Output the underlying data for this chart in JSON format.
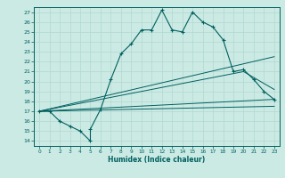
{
  "xlabel": "Humidex (Indice chaleur)",
  "bg_color": "#cceae4",
  "grid_color": "#b0d8d0",
  "line_color": "#006060",
  "xlim": [
    -0.5,
    23.5
  ],
  "ylim": [
    13.5,
    27.5
  ],
  "xticks": [
    0,
    1,
    2,
    3,
    4,
    5,
    6,
    7,
    8,
    9,
    10,
    11,
    12,
    13,
    14,
    15,
    16,
    17,
    18,
    19,
    20,
    21,
    22,
    23
  ],
  "yticks": [
    14,
    15,
    16,
    17,
    18,
    19,
    20,
    21,
    22,
    23,
    24,
    25,
    26,
    27
  ],
  "main_x": [
    0,
    1,
    2,
    3,
    4,
    5,
    5,
    6,
    7,
    8,
    9,
    10,
    11,
    12,
    13,
    14,
    15,
    16,
    17,
    18,
    19,
    20,
    21,
    22,
    23
  ],
  "main_y": [
    17.0,
    17.0,
    16.0,
    15.5,
    15.0,
    14.0,
    15.2,
    17.2,
    20.2,
    22.8,
    23.8,
    25.2,
    25.2,
    27.2,
    25.2,
    25.0,
    27.0,
    26.0,
    25.5,
    24.2,
    21.0,
    21.2,
    20.2,
    19.0,
    18.2
  ],
  "trend1_x": [
    0,
    23
  ],
  "trend1_y": [
    17.0,
    22.5
  ],
  "trend2_x": [
    0,
    20,
    23
  ],
  "trend2_y": [
    17.0,
    21.0,
    19.2
  ],
  "trend3_x": [
    0,
    23
  ],
  "trend3_y": [
    17.0,
    18.2
  ],
  "trend4_x": [
    0,
    23
  ],
  "trend4_y": [
    17.0,
    17.5
  ]
}
